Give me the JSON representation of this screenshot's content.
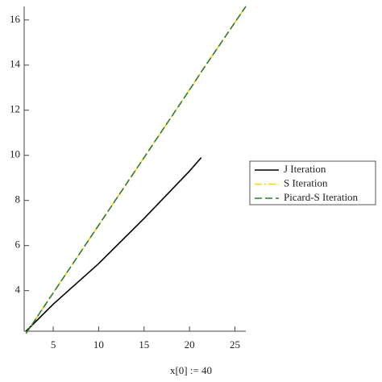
{
  "chart_data": {
    "type": "line",
    "x": [
      2,
      5,
      10,
      15,
      20,
      21.3,
      26.2
    ],
    "series": [
      {
        "name": "J Iteration",
        "color": "#000000",
        "style": "solid",
        "values": [
          2.2,
          3.4,
          5.2,
          7.2,
          9.3,
          9.9,
          null
        ]
      },
      {
        "name": "S Iteration",
        "color": "#f2d400",
        "style": "dashdot",
        "values": [
          2.1,
          3.9,
          6.9,
          9.9,
          12.9,
          13.7,
          16.6
        ]
      },
      {
        "name": "Picard-S Iteration",
        "color": "#2e7d32",
        "style": "dash",
        "values": [
          2.1,
          3.9,
          6.9,
          9.9,
          12.9,
          13.7,
          16.6
        ]
      }
    ],
    "xlim": [
      1.8,
      26.2
    ],
    "ylim": [
      2.2,
      16.6
    ],
    "xticks": [
      5,
      10,
      15,
      20,
      25
    ],
    "yticks": [
      4,
      6,
      8,
      10,
      12,
      14,
      16
    ],
    "x_label": "x[0] := 40",
    "legend": "right"
  }
}
